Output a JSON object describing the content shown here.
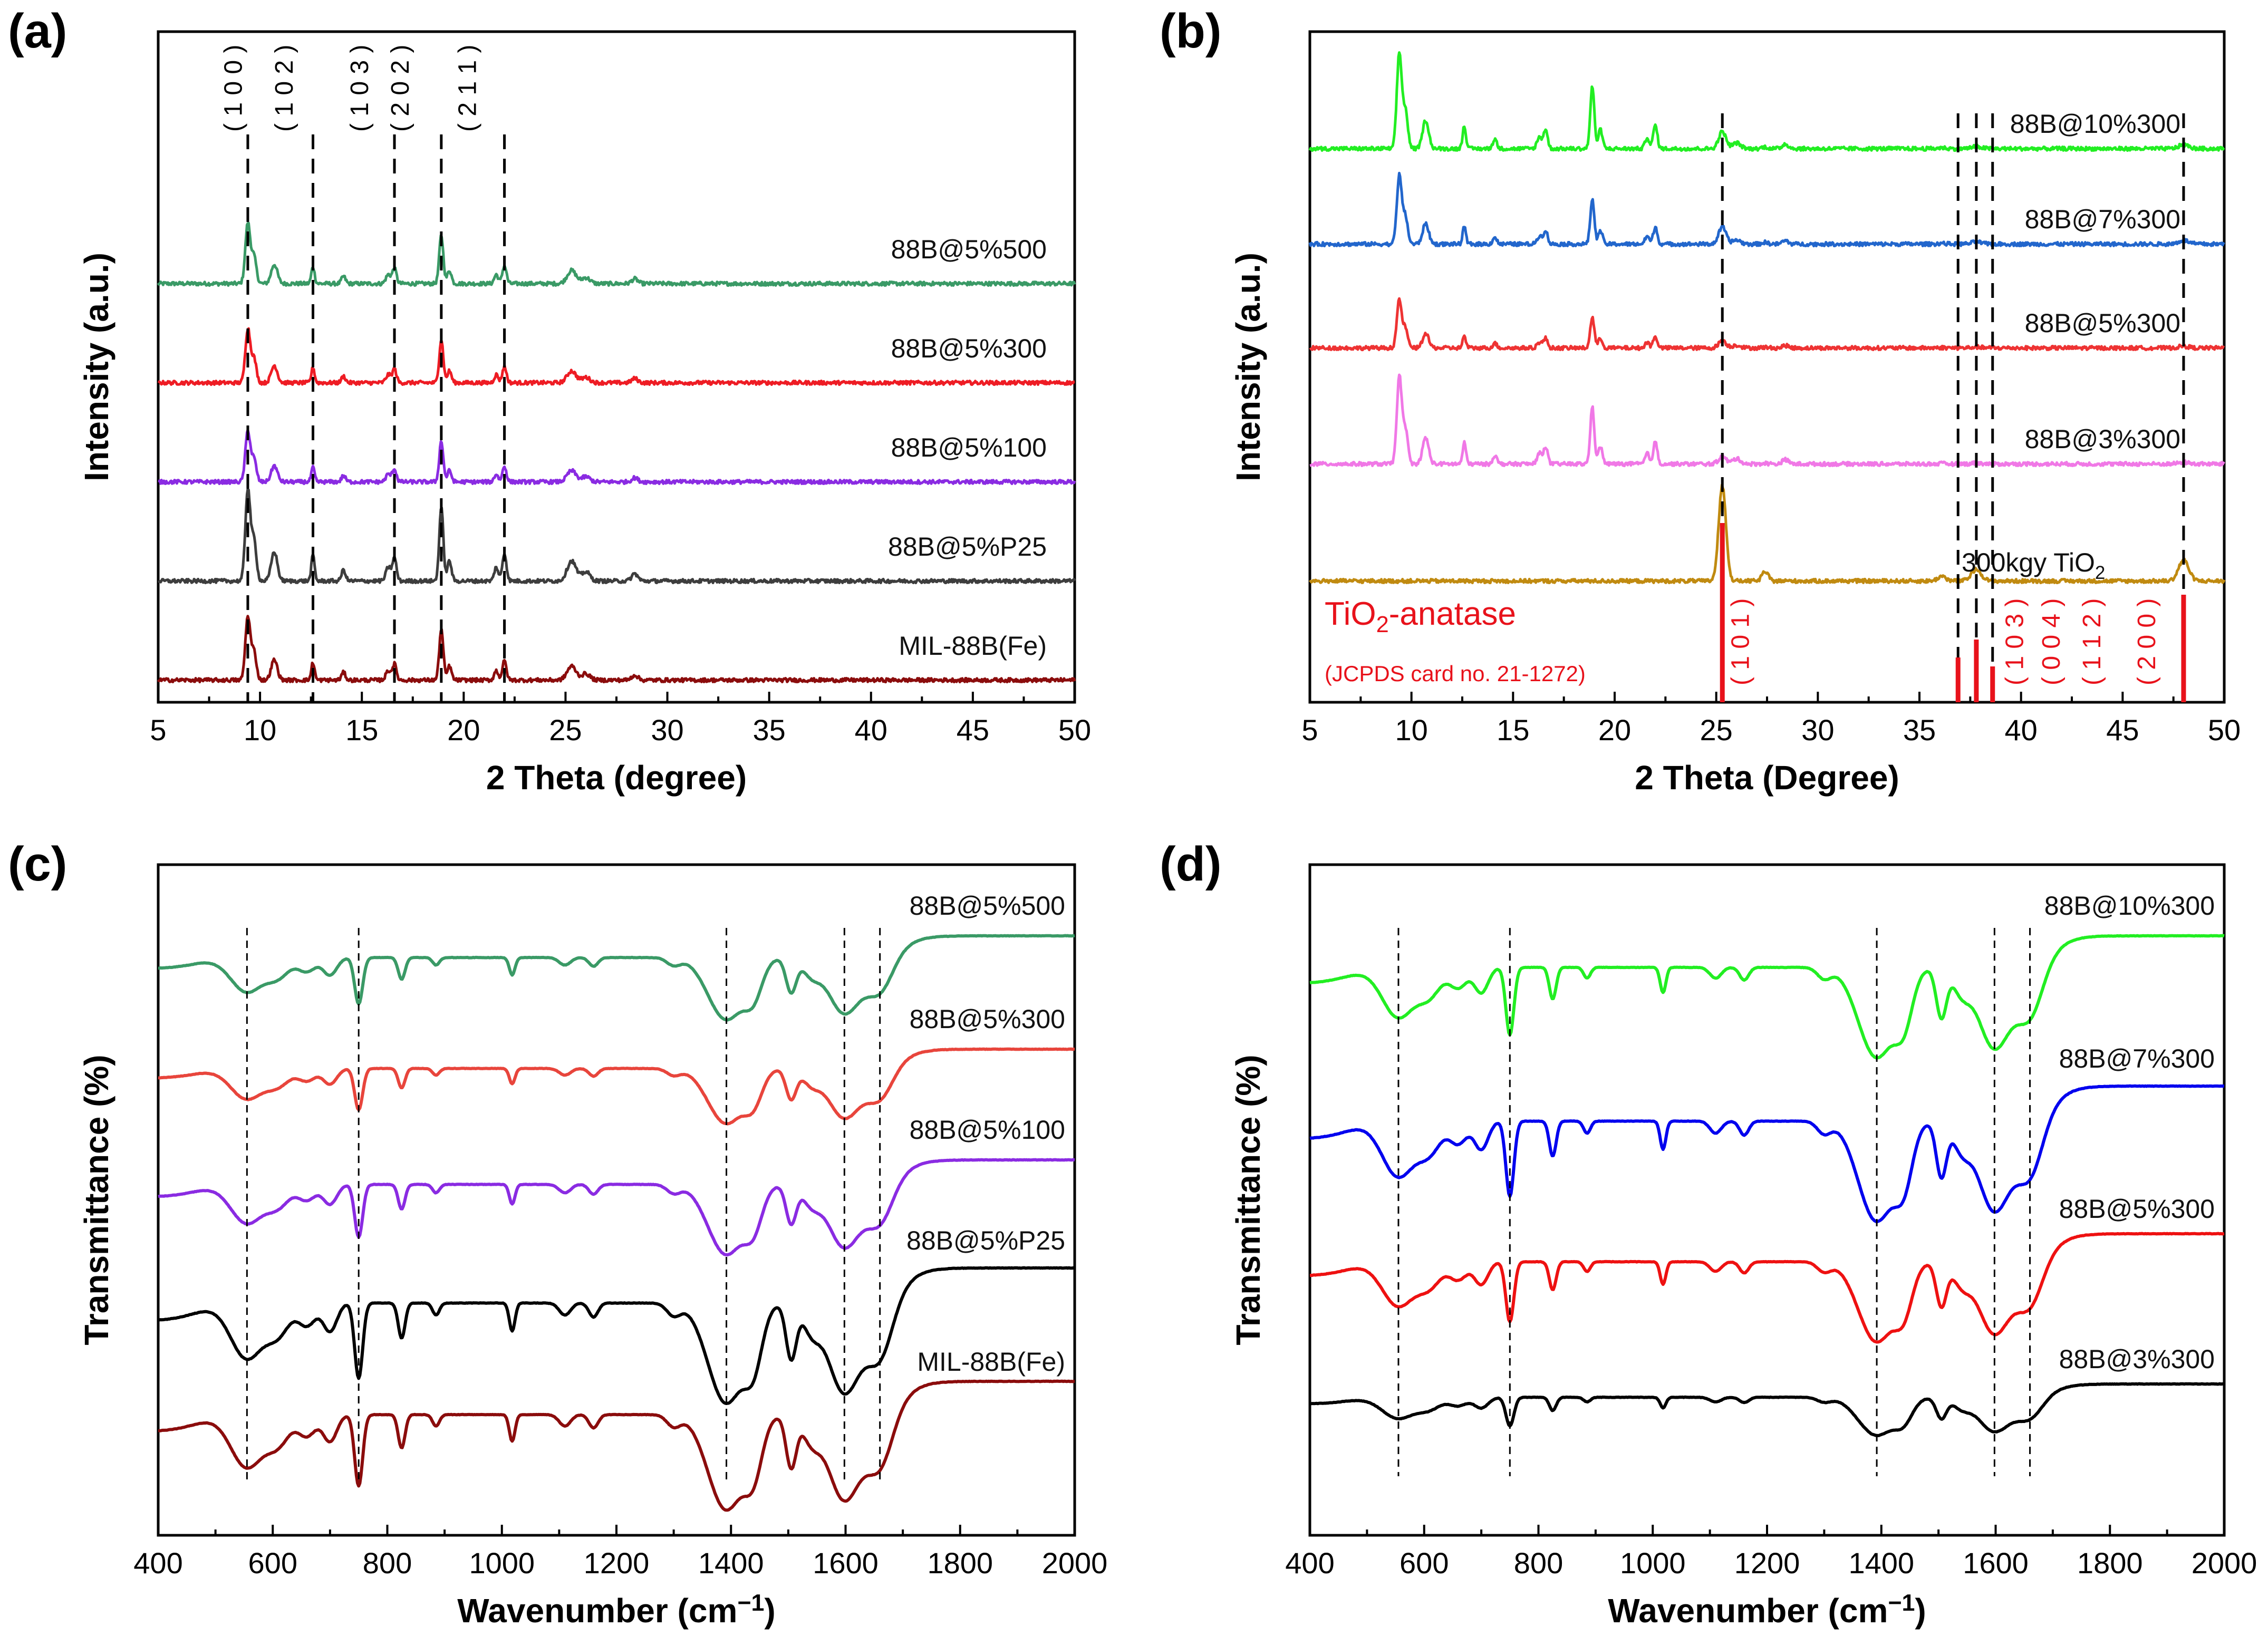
{
  "figure_title": "",
  "chart_data": [
    {
      "panel": "(a)",
      "type": "line",
      "xlabel": "2 Theta (degree)",
      "ylabel": "Intensity (a.u.)",
      "xlim": [
        5,
        50
      ],
      "xticks": [
        "5",
        "10",
        "15",
        "20",
        "25",
        "30",
        "35",
        "40",
        "45",
        "50"
      ],
      "ref_lines": [
        9.4,
        12.6,
        16.6,
        18.9,
        22.0
      ],
      "hkl_labels": [
        {
          "text": "( 1 0 0 )",
          "x": 9.1
        },
        {
          "text": "( 1 0 2 )",
          "x": 11.6
        },
        {
          "text": "( 1 0 3 )",
          "x": 15.3
        },
        {
          "text": "( 2 0 2 )",
          "x": 17.3
        },
        {
          "text": "( 2 1 1 )",
          "x": 20.6
        }
      ],
      "peaks": [
        {
          "x": 9.4,
          "h": 1.0,
          "w": 0.12
        },
        {
          "x": 9.7,
          "h": 0.45,
          "w": 0.12
        },
        {
          "x": 10.7,
          "h": 0.32,
          "w": 0.15
        },
        {
          "x": 12.6,
          "h": 0.28,
          "w": 0.08
        },
        {
          "x": 14.1,
          "h": 0.12,
          "w": 0.1
        },
        {
          "x": 16.3,
          "h": 0.15,
          "w": 0.12
        },
        {
          "x": 16.6,
          "h": 0.25,
          "w": 0.1
        },
        {
          "x": 18.9,
          "h": 0.8,
          "w": 0.1
        },
        {
          "x": 19.3,
          "h": 0.22,
          "w": 0.1
        },
        {
          "x": 21.6,
          "h": 0.15,
          "w": 0.1
        },
        {
          "x": 22.0,
          "h": 0.3,
          "w": 0.1
        },
        {
          "x": 25.3,
          "h": 0.22,
          "w": 0.22
        },
        {
          "x": 26.0,
          "h": 0.1,
          "w": 0.2
        },
        {
          "x": 28.4,
          "h": 0.08,
          "w": 0.15
        }
      ],
      "series": [
        {
          "name": "88B@5%500",
          "color": "#3a9a66",
          "offset": 4,
          "scale": 0.95
        },
        {
          "name": "88B@5%300",
          "color": "#ee1c24",
          "offset": 3,
          "scale": 0.85
        },
        {
          "name": "88B@5%100",
          "color": "#8a2be2",
          "offset": 2,
          "scale": 0.8
        },
        {
          "name": "88B@5%P25",
          "color": "#3d3d3d",
          "offset": 1,
          "scale": 1.45
        },
        {
          "name": "MIL-88B(Fe)",
          "color": "#8b0c0c",
          "offset": 0,
          "scale": 1.0
        }
      ]
    },
    {
      "panel": "(b)",
      "type": "line",
      "xlabel": "2 Theta (Degree)",
      "ylabel": "Intensity (a.u.)",
      "xlim": [
        5,
        50
      ],
      "xticks": [
        "5",
        "10",
        "15",
        "20",
        "25",
        "30",
        "35",
        "40",
        "45",
        "50"
      ],
      "ref_lines": [
        25.3,
        36.9,
        37.8,
        38.6,
        48.0
      ],
      "reference": {
        "name": "TiO",
        "sub": "2",
        "suffix": "-anatase",
        "card": "(JCPDS card no. 21-1272)",
        "sticks": [
          {
            "x": 25.3,
            "h": 1.0
          },
          {
            "x": 36.9,
            "h": 0.25
          },
          {
            "x": 37.8,
            "h": 0.35
          },
          {
            "x": 38.6,
            "h": 0.2
          },
          {
            "x": 48.0,
            "h": 0.6
          }
        ],
        "hkl_labels": [
          {
            "text": "( 1 0 1 )",
            "x": 26.6
          },
          {
            "text": "( 1 0 3 )",
            "x": 40.1
          },
          {
            "text": "( 0 0 4 )",
            "x": 41.9
          },
          {
            "text": "( 1 1 2 )",
            "x": 43.9
          },
          {
            "text": "( 2 0 0 )",
            "x": 46.6
          }
        ]
      },
      "mof_peaks": [
        {
          "x": 9.4,
          "h": 1.0,
          "w": 0.12
        },
        {
          "x": 9.7,
          "h": 0.4,
          "w": 0.12
        },
        {
          "x": 10.7,
          "h": 0.3,
          "w": 0.15
        },
        {
          "x": 12.6,
          "h": 0.25,
          "w": 0.08
        },
        {
          "x": 14.1,
          "h": 0.1,
          "w": 0.1
        },
        {
          "x": 16.3,
          "h": 0.12,
          "w": 0.12
        },
        {
          "x": 16.6,
          "h": 0.2,
          "w": 0.1
        },
        {
          "x": 18.9,
          "h": 0.65,
          "w": 0.1
        },
        {
          "x": 19.3,
          "h": 0.2,
          "w": 0.1
        },
        {
          "x": 21.6,
          "h": 0.12,
          "w": 0.1
        },
        {
          "x": 22.0,
          "h": 0.25,
          "w": 0.1
        },
        {
          "x": 26.0,
          "h": 0.06,
          "w": 0.2
        },
        {
          "x": 28.4,
          "h": 0.05,
          "w": 0.15
        }
      ],
      "tio2_peaks": [
        {
          "x": 25.3,
          "h": 1.0,
          "w": 0.18
        },
        {
          "x": 27.4,
          "h": 0.1,
          "w": 0.15
        },
        {
          "x": 36.1,
          "h": 0.05,
          "w": 0.2
        },
        {
          "x": 37.8,
          "h": 0.12,
          "w": 0.25
        },
        {
          "x": 48.0,
          "h": 0.22,
          "w": 0.25
        }
      ],
      "series": [
        {
          "name": "88B@10%300",
          "color": "#22ee22",
          "offset": 4,
          "scale": 1.0,
          "tio2": 0.18
        },
        {
          "name": "88B@7%300",
          "color": "#2266cc",
          "offset": 3,
          "scale": 0.72,
          "tio2": 0.18
        },
        {
          "name": "88B@5%300",
          "color": "#ee3333",
          "offset": 2,
          "scale": 0.5,
          "tio2": 0.08
        },
        {
          "name": "88B@3%300",
          "color": "#f078e6",
          "offset": 1,
          "scale": 0.92,
          "tio2": 0.08
        },
        {
          "name": "300kgy TiO",
          "sub": "2",
          "color": "#c08a10",
          "offset": 0,
          "scale": 0.0,
          "tio2": 1.0
        }
      ]
    },
    {
      "panel": "(c)",
      "type": "line",
      "xlabel": "Wavenumber (cm",
      "xlabel_sup": "−1",
      "xlabel_end": ")",
      "ylabel": "Transmittance (%)",
      "xlim": [
        400,
        2000
      ],
      "xticks": [
        "400",
        "600",
        "800",
        "1000",
        "1200",
        "1400",
        "1600",
        "1800",
        "2000"
      ],
      "ref_lines": [
        555,
        750,
        1392,
        1598,
        1660
      ],
      "bands": [
        {
          "x": 555,
          "d": 0.55,
          "w": 28
        },
        {
          "x": 610,
          "d": 0.28,
          "w": 20
        },
        {
          "x": 660,
          "d": 0.22,
          "w": 15
        },
        {
          "x": 700,
          "d": 0.28,
          "w": 12
        },
        {
          "x": 750,
          "d": 0.75,
          "w": 7
        },
        {
          "x": 825,
          "d": 0.35,
          "w": 6
        },
        {
          "x": 885,
          "d": 0.12,
          "w": 6
        },
        {
          "x": 1018,
          "d": 0.28,
          "w": 5
        },
        {
          "x": 1110,
          "d": 0.12,
          "w": 10
        },
        {
          "x": 1160,
          "d": 0.14,
          "w": 8
        },
        {
          "x": 1300,
          "d": 0.12,
          "w": 12
        },
        {
          "x": 1392,
          "d": 1.0,
          "w": 32
        },
        {
          "x": 1440,
          "d": 0.45,
          "w": 15
        },
        {
          "x": 1505,
          "d": 0.55,
          "w": 9
        },
        {
          "x": 1540,
          "d": 0.25,
          "w": 15
        },
        {
          "x": 1598,
          "d": 0.9,
          "w": 28
        },
        {
          "x": 1660,
          "d": 0.55,
          "w": 22
        }
      ],
      "series": [
        {
          "name": "88B@5%500",
          "color": "#3a9a66",
          "offset": 4,
          "scale": 0.62
        },
        {
          "name": "88B@5%300",
          "color": "#e8453c",
          "offset": 3,
          "scale": 0.55
        },
        {
          "name": "88B@5%100",
          "color": "#8a2be2",
          "offset": 2,
          "scale": 0.7
        },
        {
          "name": "88B@5%P25",
          "color": "#000000",
          "offset": 1,
          "scale": 1.0
        },
        {
          "name": "MIL-88B(Fe)",
          "color": "#8b0c0c",
          "offset": 0,
          "scale": 0.95
        }
      ]
    },
    {
      "panel": "(d)",
      "type": "line",
      "xlabel": "Wavenumber (cm",
      "xlabel_sup": "−1",
      "xlabel_end": ")",
      "ylabel": "Transmittance (%)",
      "xlim": [
        400,
        2000
      ],
      "xticks": [
        "400",
        "600",
        "800",
        "1000",
        "1200",
        "1400",
        "1600",
        "1800",
        "2000"
      ],
      "ref_lines": [
        555,
        750,
        1392,
        1598,
        1660
      ],
      "series": [
        {
          "name": "88B@10%300",
          "color": "#22ee22",
          "offset": 3,
          "scale": 0.9
        },
        {
          "name": "88B@7%300",
          "color": "#0000ee",
          "offset": 2,
          "scale": 1.0
        },
        {
          "name": "88B@5%300",
          "color": "#ee1111",
          "offset": 1,
          "scale": 0.8
        },
        {
          "name": "88B@3%300",
          "color": "#000000",
          "offset": 0,
          "scale": 0.38
        }
      ]
    }
  ]
}
